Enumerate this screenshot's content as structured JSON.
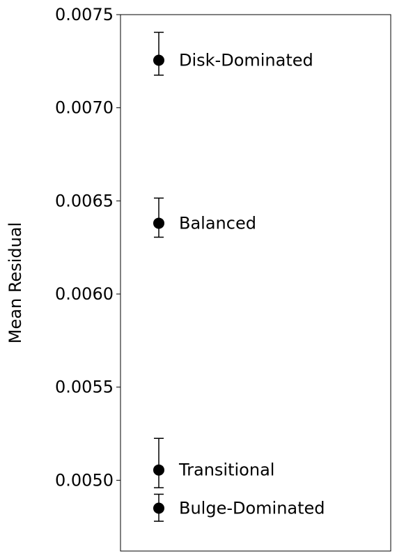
{
  "chart_data": {
    "type": "scatter",
    "title": "",
    "xlabel": "",
    "ylabel": "Mean Residual",
    "ylim": [
      0.00462,
      0.0075
    ],
    "yticks": [
      "0.0075",
      "0.0070",
      "0.0065",
      "0.0060",
      "0.0055",
      "0.0050"
    ],
    "ytick_values": [
      0.0075,
      0.007,
      0.0065,
      0.006,
      0.0055,
      0.005
    ],
    "grid": false,
    "marker_color": "#000000",
    "points": [
      {
        "label": "Disk-Dominated",
        "y": 0.007255,
        "err_low": 0.007175,
        "err_high": 0.007405
      },
      {
        "label": "Balanced",
        "y": 0.00638,
        "err_low": 0.006305,
        "err_high": 0.006515
      },
      {
        "label": "Transitional",
        "y": 0.005055,
        "err_low": 0.00496,
        "err_high": 0.005225
      },
      {
        "label": "Bulge-Dominated",
        "y": 0.00485,
        "err_low": 0.00478,
        "err_high": 0.004925
      }
    ]
  }
}
